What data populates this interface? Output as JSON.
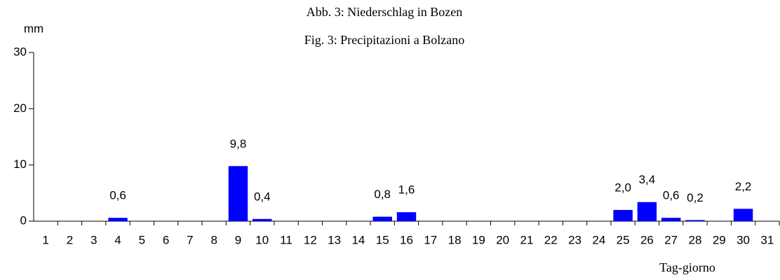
{
  "chart_data": {
    "type": "bar",
    "title": "Abb. 3: Niederschlag in Bozen",
    "subtitle": "Fig. 3: Precipitazioni a Bolzano",
    "y_label": "mm",
    "x_label": "Tag-giorno",
    "categories": [
      "1",
      "2",
      "3",
      "4",
      "5",
      "6",
      "7",
      "8",
      "9",
      "10",
      "11",
      "12",
      "13",
      "14",
      "15",
      "16",
      "17",
      "18",
      "19",
      "20",
      "21",
      "22",
      "23",
      "24",
      "25",
      "26",
      "27",
      "28",
      "29",
      "30",
      "31"
    ],
    "values": [
      0,
      0,
      0,
      0.6,
      0,
      0,
      0,
      0,
      9.8,
      0.4,
      0,
      0,
      0,
      0,
      0.8,
      1.6,
      0,
      0,
      0,
      0,
      0,
      0,
      0,
      0,
      2.0,
      3.4,
      0.6,
      0.2,
      0,
      2.2,
      0
    ],
    "value_labels": [
      null,
      null,
      null,
      "0,6",
      null,
      null,
      null,
      null,
      "9,8",
      "0,4",
      null,
      null,
      null,
      null,
      "0,8",
      "1,6",
      null,
      null,
      null,
      null,
      null,
      null,
      null,
      null,
      "2,0",
      "3,4",
      "0,6",
      "0,2",
      null,
      "2,2",
      null
    ],
    "color": "#0000ff",
    "ylim": [
      0,
      30
    ],
    "yticks": [
      0,
      10,
      20,
      30
    ],
    "grid": false
  }
}
